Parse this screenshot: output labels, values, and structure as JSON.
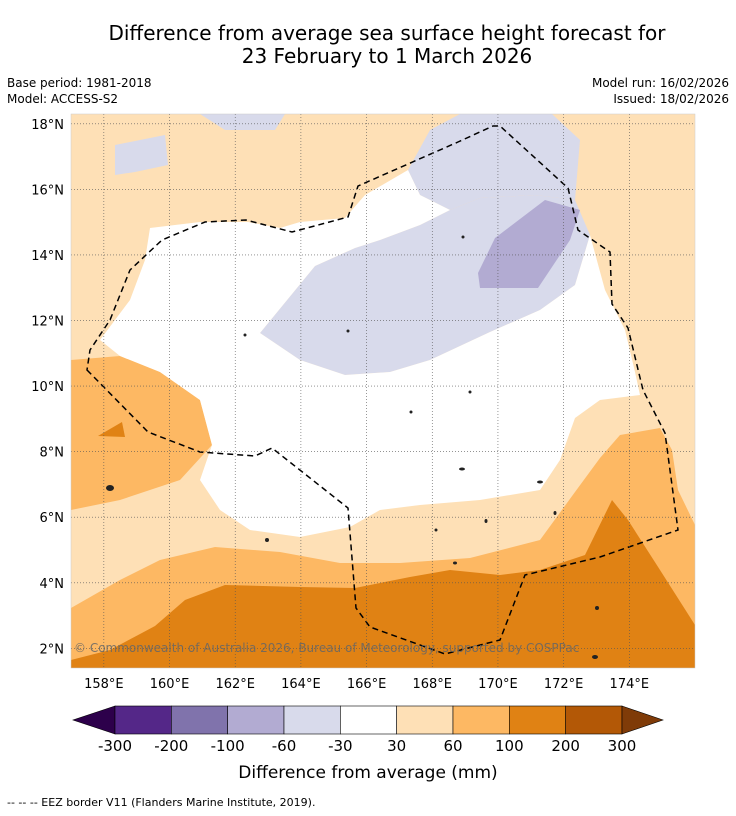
{
  "title": {
    "line1": "Difference from average sea surface height forecast for",
    "line2": "23 February to 1 March 2026"
  },
  "meta": {
    "base_period": "Base period: 1981-2018",
    "model": "Model: ACCESS-S2",
    "model_run": "Model run: 16/02/2026",
    "issued": "Issued: 18/02/2026"
  },
  "map": {
    "lon_range": [
      157.0,
      176.0
    ],
    "lat_range": [
      1.4,
      18.3
    ],
    "lon_ticks": [
      "158°E",
      "160°E",
      "162°E",
      "164°E",
      "166°E",
      "168°E",
      "170°E",
      "172°E",
      "174°E"
    ],
    "lat_ticks": [
      "2°N",
      "4°N",
      "6°N",
      "8°N",
      "10°N",
      "12°N",
      "14°N",
      "16°N",
      "18°N"
    ],
    "copyright": "© Commonwealth of Australia 2026, Bureau of Meteorology, supported by COSPPac"
  },
  "colorbar": {
    "labels": [
      "-300",
      "-200",
      "-100",
      "-60",
      "-30",
      "30",
      "60",
      "100",
      "200",
      "300"
    ],
    "colors": [
      "#2d004b",
      "#542788",
      "#8073ac",
      "#b2abd2",
      "#d8daeb",
      "#ffffff",
      "#fee0b6",
      "#fdb863",
      "#e08214",
      "#b35806",
      "#7f3b08"
    ],
    "label": "Difference from average (mm)"
  },
  "legend_note": "--  --  -- EEZ border V11 (Flanders Marine Institute, 2019)."
}
